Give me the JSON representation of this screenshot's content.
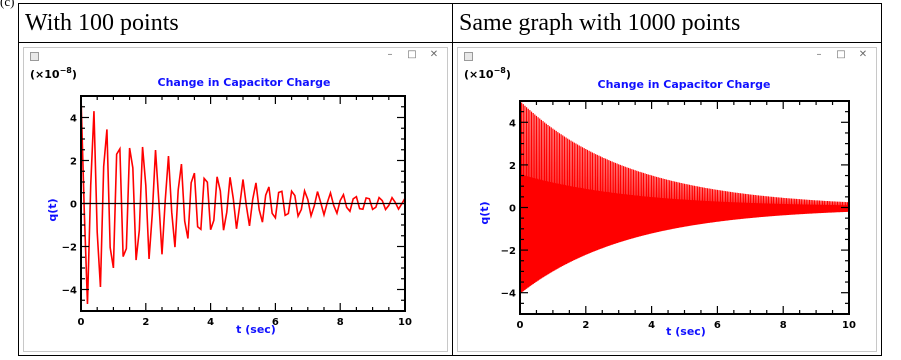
{
  "fragment_label": "(c)",
  "table": {
    "headers": [
      "With 100 points",
      "Same graph with 1000 points"
    ]
  },
  "window_controls": {
    "minimize": "–",
    "maximize": "□",
    "close": "✕"
  },
  "plots": [
    {
      "title": "Change in Capacitor Charge",
      "exponent_label": "(×10",
      "exponent": "−8",
      "exponent_close": ")",
      "xlabel": "t (sec)",
      "ylabel": "q(t)",
      "x_ticks": [
        "0",
        "2",
        "4",
        "6",
        "8",
        "10"
      ],
      "y_ticks": [
        "4",
        "2",
        "0",
        "−2",
        "−4"
      ]
    },
    {
      "title": "Change in Capacitor Charge",
      "exponent_label": "(×10",
      "exponent": "−8",
      "exponent_close": ")",
      "xlabel": "t (sec)",
      "ylabel": "q(t)",
      "x_ticks": [
        "0",
        "2",
        "4",
        "6",
        "8",
        "10"
      ],
      "y_ticks": [
        "4",
        "2",
        "0",
        "−2",
        "−4"
      ]
    }
  ],
  "chart_data": [
    {
      "type": "line",
      "series": [
        {
          "color": "#ff0000",
          "sample_points": 100,
          "model": "q(t) = 5e-8 · exp(-0.3 t) · cos(2π · 2.6 t)"
        }
      ],
      "xlim": [
        0,
        10
      ],
      "ylim": [
        -5,
        5
      ],
      "y_scale": "x10^-8",
      "x_ticks": [
        0,
        2,
        4,
        6,
        8,
        10
      ],
      "y_ticks": [
        -4,
        -2,
        0,
        2,
        4
      ],
      "title": "Change in Capacitor Charge",
      "xlabel": "t (sec)",
      "ylabel": "q(t)",
      "zero_line": true
    },
    {
      "type": "line",
      "series": [
        {
          "color": "#ff0000",
          "sample_points": 1000,
          "model": "q(t) = 5e-8 · exp(-0.3 t) · cos(2π · 40 t)"
        }
      ],
      "xlim": [
        0,
        10
      ],
      "ylim": [
        -5,
        5
      ],
      "y_scale": "x10^-8",
      "x_ticks": [
        0,
        2,
        4,
        6,
        8,
        10
      ],
      "y_ticks": [
        -4,
        -2,
        0,
        2,
        4
      ],
      "title": "Change in Capacitor Charge",
      "xlabel": "t (sec)",
      "ylabel": "q(t)",
      "zero_line": false
    }
  ]
}
